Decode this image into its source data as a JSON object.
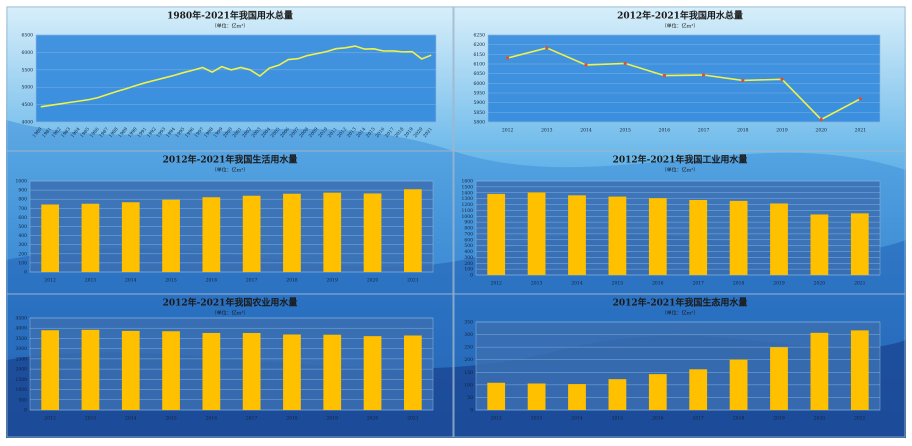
{
  "chart_data": [
    {
      "type": "line",
      "title": "1980年-2021年我国用水总量",
      "subtitle": "（单位：亿m³）",
      "categories": [
        "1980",
        "1981",
        "1982",
        "1983",
        "1984",
        "1985",
        "1986",
        "1987",
        "1988",
        "1989",
        "1990",
        "1991",
        "1992",
        "1993",
        "1994",
        "1995",
        "1996",
        "1997",
        "1998",
        "1999",
        "2000",
        "2001",
        "2002",
        "2003",
        "2004",
        "2005",
        "2006",
        "2007",
        "2008",
        "2009",
        "2010",
        "2011",
        "2012",
        "2013",
        "2014",
        "2015",
        "2016",
        "2017",
        "2018",
        "2019",
        "2020",
        "2021"
      ],
      "values": [
        4437,
        4480,
        4520,
        4560,
        4600,
        4640,
        4700,
        4790,
        4880,
        4960,
        5050,
        5130,
        5200,
        5270,
        5340,
        5420,
        5490,
        5566,
        5435,
        5591,
        5498,
        5567,
        5497,
        5320,
        5548,
        5633,
        5795,
        5819,
        5910,
        5965,
        6022,
        6107,
        6131,
        6183,
        6095,
        6103,
        6040,
        6043,
        6015,
        6021,
        5813,
        5920
      ],
      "color": "#eef24a",
      "ylim": [
        4000,
        6500
      ],
      "yticks": [
        4000,
        4500,
        5000,
        5500,
        6000,
        6500
      ],
      "grid": true
    },
    {
      "type": "line",
      "title": "2012年-2021年我国用水总量",
      "subtitle": "（单位：亿m³）",
      "categories": [
        "2012",
        "2013",
        "2014",
        "2015",
        "2016",
        "2017",
        "2018",
        "2019",
        "2020",
        "2021"
      ],
      "values": [
        6131,
        6183,
        6095,
        6103,
        6040,
        6043,
        6015,
        6021,
        5813,
        5920
      ],
      "color": "#eef24a",
      "marker_color": "#e0502a",
      "ylim": [
        5800,
        6250
      ],
      "yticks": [
        5800,
        5850,
        5900,
        5950,
        6000,
        6050,
        6100,
        6150,
        6200,
        6250
      ],
      "grid": true
    },
    {
      "type": "bar",
      "title": "2012年-2021年我国生活用水量",
      "subtitle": "（单位：亿m³）",
      "categories": [
        "2012",
        "2013",
        "2014",
        "2015",
        "2016",
        "2017",
        "2018",
        "2019",
        "2020",
        "2021"
      ],
      "values": [
        741.8,
        750.1,
        766.6,
        793.5,
        821.6,
        838.1,
        859.9,
        871.7,
        863.1,
        909.4
      ],
      "color": "#ffc000",
      "ylim": [
        0,
        1000
      ],
      "yticks": [
        0,
        100,
        200,
        300,
        400,
        500,
        600,
        700,
        800,
        900,
        1000
      ],
      "grid": true
    },
    {
      "type": "bar",
      "title": "2012年-2021年我国工业用水量",
      "subtitle": "（单位：亿m³）",
      "categories": [
        "2012",
        "2013",
        "2014",
        "2015",
        "2016",
        "2017",
        "2018",
        "2019",
        "2020",
        "2021"
      ],
      "values": [
        1380.7,
        1406.4,
        1356.1,
        1334.8,
        1308.0,
        1277.0,
        1261.6,
        1217.6,
        1030.4,
        1049.6
      ],
      "color": "#ffc000",
      "ylim": [
        0,
        1600
      ],
      "yticks": [
        0,
        100,
        200,
        300,
        400,
        500,
        600,
        700,
        800,
        900,
        1000,
        1100,
        1200,
        1300,
        1400,
        1500,
        1600
      ],
      "grid": true
    },
    {
      "type": "bar",
      "title": "2012年-2021年我国农业用水量",
      "subtitle": "（单位：亿m³）",
      "categories": [
        "2012",
        "2013",
        "2014",
        "2015",
        "2016",
        "2017",
        "2018",
        "2019",
        "2020",
        "2021"
      ],
      "values": [
        3902.5,
        3921.5,
        3869.0,
        3852.2,
        3768.0,
        3766.4,
        3693.1,
        3682.3,
        3612.4,
        3644.3
      ],
      "color": "#ffc000",
      "ylim": [
        0,
        4500
      ],
      "yticks": [
        0,
        500,
        1000,
        1500,
        2000,
        2500,
        3000,
        3500,
        4000,
        4500
      ],
      "grid": true
    },
    {
      "type": "bar",
      "title": "2012年-2021年我国生态用水量",
      "subtitle": "（单位：亿m³）",
      "categories": [
        "2012",
        "2013",
        "2014",
        "2015",
        "2016",
        "2017",
        "2018",
        "2019",
        "2020",
        "2021"
      ],
      "values": [
        108.3,
        105.4,
        103.2,
        122.7,
        142.6,
        161.9,
        200.9,
        249.6,
        307.0,
        316.7
      ],
      "color": "#ffc000",
      "ylim": [
        0,
        350
      ],
      "yticks": [
        0,
        50,
        100,
        150,
        200,
        250,
        300,
        350
      ],
      "grid": true
    }
  ]
}
